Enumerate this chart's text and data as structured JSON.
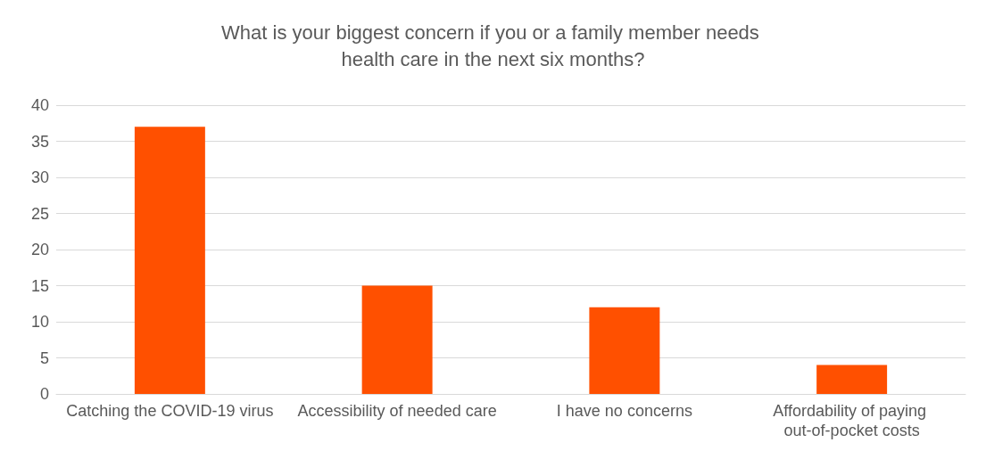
{
  "chart_data": {
    "type": "bar",
    "title": "What is your biggest concern if you or a family member needs health care in the next six months?",
    "categories": [
      "Catching the COVID-19 virus",
      "Accessibility of needed care",
      "I have no concerns",
      "Affordability of paying out-of-pocket costs"
    ],
    "values": [
      37,
      15,
      12,
      4
    ],
    "color": "#ff5000",
    "ylim": [
      0,
      40
    ],
    "yticks": [
      0,
      5,
      10,
      15,
      20,
      25,
      30,
      35,
      40
    ],
    "grid": "y"
  }
}
